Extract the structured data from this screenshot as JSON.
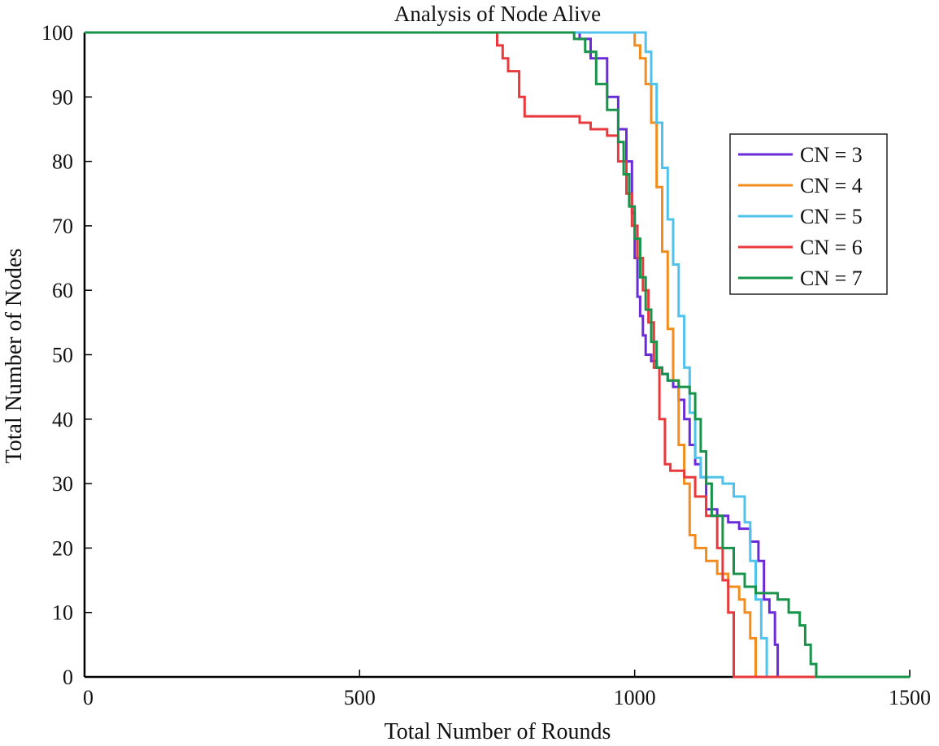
{
  "chart_data": {
    "type": "line",
    "title": "Analysis of Node Alive",
    "xlabel": "Total Number of Rounds",
    "ylabel": "Total Number of Nodes",
    "xlim": [
      0,
      1500
    ],
    "ylim": [
      0,
      100
    ],
    "xticks": [
      0,
      500,
      1000,
      1500
    ],
    "yticks": [
      0,
      10,
      20,
      30,
      40,
      50,
      60,
      70,
      80,
      90,
      100
    ],
    "xtick_labels": [
      "0",
      "500",
      "1000",
      "1500"
    ],
    "ytick_labels": [
      "0",
      "10",
      "20",
      "30",
      "40",
      "50",
      "60",
      "70",
      "80",
      "90",
      "100"
    ],
    "legend_position": "right",
    "series": [
      {
        "name": "CN = 3",
        "color": "#6b2bd9",
        "x": [
          0,
          750,
          900,
          920,
          950,
          970,
          985,
          995,
          1000,
          1005,
          1010,
          1015,
          1020,
          1030,
          1040,
          1050,
          1060,
          1070,
          1080,
          1090,
          1100,
          1110,
          1120,
          1130,
          1150,
          1170,
          1190,
          1210,
          1225,
          1235,
          1245,
          1255,
          1260,
          1500
        ],
        "y": [
          100,
          100,
          99,
          96,
          90,
          85,
          80,
          72,
          65,
          59,
          56,
          53,
          50,
          49,
          48,
          47,
          46,
          45,
          43,
          40,
          36,
          33,
          31,
          26,
          25,
          24,
          23,
          21,
          18,
          12,
          10,
          5,
          0,
          0
        ]
      },
      {
        "name": "CN = 4",
        "color": "#f28c1c",
        "x": [
          0,
          980,
          1000,
          1010,
          1020,
          1030,
          1040,
          1050,
          1060,
          1070,
          1080,
          1090,
          1100,
          1110,
          1130,
          1150,
          1170,
          1190,
          1200,
          1210,
          1220,
          1500
        ],
        "y": [
          100,
          100,
          98,
          96,
          92,
          86,
          76,
          66,
          54,
          46,
          36,
          30,
          22,
          20,
          18,
          16,
          14,
          12,
          10,
          6,
          0,
          0
        ]
      },
      {
        "name": "CN = 5",
        "color": "#4fc3ec",
        "x": [
          0,
          1000,
          1020,
          1030,
          1040,
          1050,
          1060,
          1070,
          1080,
          1090,
          1100,
          1110,
          1120,
          1140,
          1160,
          1180,
          1200,
          1210,
          1220,
          1230,
          1240,
          1500
        ],
        "y": [
          100,
          100,
          97,
          92,
          86,
          79,
          71,
          64,
          56,
          48,
          41,
          34,
          31,
          31,
          30,
          28,
          24,
          18,
          12,
          6,
          0,
          0
        ]
      },
      {
        "name": "CN = 6",
        "color": "#e8393c",
        "x": [
          0,
          740,
          750,
          760,
          770,
          790,
          800,
          880,
          900,
          920,
          950,
          970,
          985,
          995,
          1005,
          1015,
          1025,
          1035,
          1045,
          1055,
          1065,
          1090,
          1110,
          1130,
          1150,
          1160,
          1170,
          1180,
          1500
        ],
        "y": [
          100,
          100,
          98,
          96,
          94,
          90,
          87,
          87,
          86,
          85,
          84,
          80,
          75,
          70,
          65,
          60,
          55,
          48,
          40,
          33,
          32,
          31,
          28,
          25,
          20,
          15,
          10,
          0,
          0
        ]
      },
      {
        "name": "CN = 7",
        "color": "#17944a",
        "x": [
          0,
          860,
          890,
          910,
          930,
          950,
          970,
          980,
          990,
          1000,
          1010,
          1020,
          1030,
          1040,
          1050,
          1060,
          1080,
          1100,
          1110,
          1120,
          1130,
          1140,
          1160,
          1180,
          1200,
          1220,
          1240,
          1260,
          1280,
          1300,
          1310,
          1320,
          1330,
          1500
        ],
        "y": [
          100,
          100,
          99,
          97,
          92,
          88,
          83,
          78,
          73,
          68,
          62,
          57,
          52,
          48,
          47,
          46,
          45,
          44,
          40,
          35,
          30,
          25,
          20,
          16,
          14,
          13,
          13,
          12,
          10,
          8,
          5,
          2,
          0,
          0
        ]
      }
    ]
  }
}
